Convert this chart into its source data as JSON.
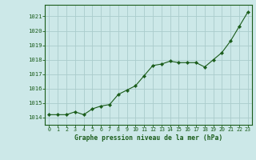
{
  "x": [
    0,
    1,
    2,
    3,
    4,
    5,
    6,
    7,
    8,
    9,
    10,
    11,
    12,
    13,
    14,
    15,
    16,
    17,
    18,
    19,
    20,
    21,
    22,
    23
  ],
  "y": [
    1014.2,
    1014.2,
    1014.2,
    1014.4,
    1014.2,
    1014.6,
    1014.8,
    1014.9,
    1015.6,
    1015.9,
    1016.2,
    1016.9,
    1017.6,
    1017.7,
    1017.9,
    1017.8,
    1017.8,
    1017.8,
    1017.5,
    1018.0,
    1018.5,
    1019.3,
    1020.3,
    1021.3
  ],
  "ylim": [
    1013.5,
    1021.8
  ],
  "yticks": [
    1014,
    1015,
    1016,
    1017,
    1018,
    1019,
    1020,
    1021
  ],
  "xticks": [
    0,
    1,
    2,
    3,
    4,
    5,
    6,
    7,
    8,
    9,
    10,
    11,
    12,
    13,
    14,
    15,
    16,
    17,
    18,
    19,
    20,
    21,
    22,
    23
  ],
  "line_color": "#1a5c1a",
  "marker_color": "#1a5c1a",
  "bg_color": "#cce8e8",
  "grid_color": "#aacccc",
  "xlabel": "Graphe pression niveau de la mer (hPa)",
  "xlabel_color": "#1a5c1a",
  "tick_color": "#1a5c1a",
  "axis_color": "#1a5c1a",
  "font_family": "monospace"
}
